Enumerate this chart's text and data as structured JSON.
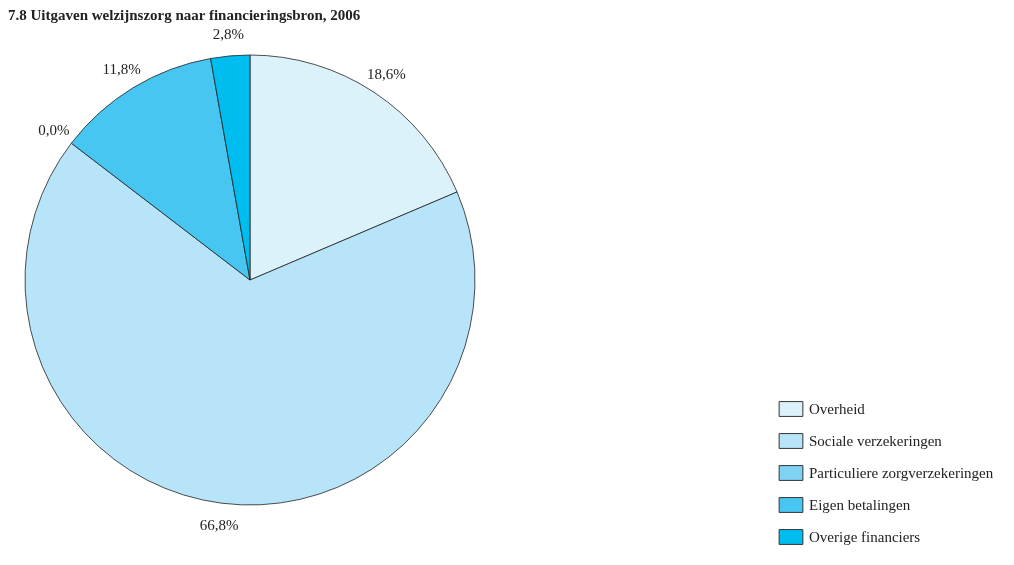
{
  "chart_data": {
    "type": "pie",
    "title": "7.8 Uitgaven welzijnszorg naar financieringsbron, 2006",
    "categories": [
      "Overheid",
      "Sociale verzekeringen",
      "Particuliere zorgverzekeringen",
      "Eigen betalingen",
      "Overige financiers"
    ],
    "values": [
      18.6,
      66.8,
      0.0,
      11.8,
      2.8
    ],
    "value_labels": [
      "18,6%",
      "66,8%",
      "0,0%",
      "11,8%",
      "2,8%"
    ],
    "colors": [
      "#dcf2fb",
      "#b7e4f8",
      "#80d2f4",
      "#48c6f2",
      "#00bdf0"
    ],
    "legend": "bottom right"
  }
}
